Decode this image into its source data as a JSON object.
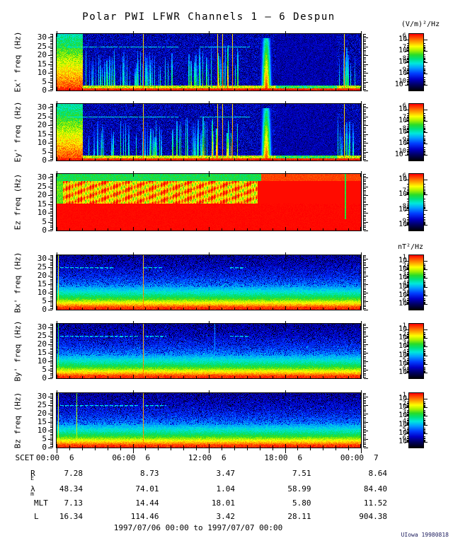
{
  "title": "Polar PWI LFWR Channels 1 — 6 Despun",
  "footer": "1997/07/06 00:00 to 1997/07/07 00:00",
  "credit": "UIowa 19980818",
  "colorbar_units": {
    "electric": "(V/m)²/Hz",
    "magnetic": "nT²/Hz"
  },
  "colors": {
    "frame": "#000000",
    "background": "#ffffff",
    "credit_text": "#202060"
  },
  "axes": {
    "time_label": "SCET",
    "time_ticks": [
      {
        "time": "00:00",
        "day": "6"
      },
      {
        "time": "06:00",
        "day": "6"
      },
      {
        "time": "12:00",
        "day": "6"
      },
      {
        "time": "18:00",
        "day": "6"
      },
      {
        "time": "00:00",
        "day": "7"
      }
    ],
    "freq_ticks": [
      "0",
      "5",
      "10",
      "15",
      "20",
      "25",
      "30"
    ]
  },
  "ephemeris": {
    "rows": [
      {
        "label": "R",
        "sub": "E",
        "values": [
          "7.28",
          "8.73",
          "3.47",
          "7.51",
          "8.64"
        ]
      },
      {
        "label": "λ",
        "sub": "m",
        "values": [
          "48.34",
          "74.01",
          "1.04",
          "58.99",
          "84.40"
        ]
      },
      {
        "label": "MLT",
        "sub": "",
        "values": [
          "7.13",
          "14.44",
          "18.01",
          "5.80",
          "11.52"
        ]
      },
      {
        "label": "L",
        "sub": "",
        "values": [
          "16.34",
          "114.46",
          "3.42",
          "28.11",
          "904.38"
        ]
      }
    ]
  },
  "chart_data": {
    "type": "heatmap",
    "subtype": "spectrogram",
    "title": "Polar PWI LFWR Channels 1 — 6 Despun",
    "x_axis": {
      "label": "SCET",
      "start": "1997/07/06 00:00",
      "end": "1997/07/07 00:00",
      "major_tick_hours": [
        0,
        6,
        12,
        18,
        24
      ],
      "minor_tick_hours": 1
    },
    "y_axis": {
      "label": "freq (Hz)",
      "range": [
        0,
        32
      ],
      "ticks": [
        0,
        5,
        10,
        15,
        20,
        25,
        30
      ]
    },
    "legend_position": "right-colorbars",
    "colormap_stops": [
      "#000008",
      "#000060",
      "#0000c8",
      "#003cff",
      "#00a0ff",
      "#00e8dc",
      "#00e178",
      "#28dc28",
      "#a0f000",
      "#ffff00",
      "#ffa000",
      "#ff5000",
      "#ff0000"
    ],
    "panels": [
      {
        "id": "ex",
        "channel": 1,
        "ylabel": "Ex' freq (Hz)",
        "unit": "(V/m)²/Hz",
        "colorbar_exponents": [
          -6,
          -7,
          -8,
          -9,
          -10
        ],
        "kind": "electric_burst",
        "seed": 101,
        "description": "Dark-blue noise background; intense broadband burst 00:00-02:00; clusters of vertical wave bursts to ~22 Hz until ~15:00; narrow red spikes at ~06:50, ~12:40-13:50, ~22:45; strong broadband blob near 16:30; quiet 17:30-22:00; cyan interference line near 25 Hz; red band below 2 Hz.",
        "features": {
          "left_burst": {
            "t0": 0.0,
            "t1": 0.085
          },
          "streak_clusters": [
            {
              "t0": 0.095,
              "t1": 0.41,
              "count": 48,
              "fmax": 0.72,
              "strength": 0.58
            },
            {
              "t0": 0.42,
              "t1": 0.5,
              "count": 16,
              "fmax": 0.78,
              "strength": 0.62
            },
            {
              "t0": 0.5,
              "t1": 0.6,
              "count": 12,
              "fmax": 0.82,
              "strength": 0.78
            },
            {
              "t0": 0.925,
              "t1": 0.985,
              "count": 10,
              "fmax": 0.78,
              "strength": 0.62
            }
          ],
          "red_lines": [
            0.284,
            0.528,
            0.545,
            0.578,
            0.947
          ],
          "blob": {
            "t": 0.688,
            "halfwidth": 0.016
          },
          "cyan_line": {
            "f": 0.78,
            "segments": [
              [
                0.035,
                0.4
              ],
              [
                0.47,
                0.635
              ]
            ]
          },
          "quiet_region": [
            0.72,
            0.92
          ]
        }
      },
      {
        "id": "ey",
        "channel": 2,
        "ylabel": "Ey' freq (Hz)",
        "unit": "(V/m)²/Hz",
        "colorbar_exponents": [
          -6,
          -7,
          -8,
          -9,
          -10
        ],
        "kind": "electric_burst",
        "seed": 202,
        "description": "Very similar to Ex': burst at start, vertical wave bursts until ~15:00, blob near 16:30, quiet evening sector, 25 Hz interference line, red band below 2 Hz.",
        "features": {
          "left_burst": {
            "t0": 0.0,
            "t1": 0.085
          },
          "streak_clusters": [
            {
              "t0": 0.095,
              "t1": 0.41,
              "count": 44,
              "fmax": 0.72,
              "strength": 0.58
            },
            {
              "t0": 0.42,
              "t1": 0.5,
              "count": 15,
              "fmax": 0.78,
              "strength": 0.62
            },
            {
              "t0": 0.5,
              "t1": 0.6,
              "count": 12,
              "fmax": 0.82,
              "strength": 0.78
            },
            {
              "t0": 0.925,
              "t1": 0.985,
              "count": 10,
              "fmax": 0.78,
              "strength": 0.62
            }
          ],
          "red_lines": [
            0.284,
            0.528,
            0.545,
            0.578,
            0.947
          ],
          "blob": {
            "t": 0.688,
            "halfwidth": 0.016
          },
          "cyan_line": {
            "f": 0.78,
            "segments": [
              [
                0.035,
                0.4
              ],
              [
                0.47,
                0.635
              ]
            ]
          },
          "quiet_region": [
            0.72,
            0.92
          ]
        }
      },
      {
        "id": "ez",
        "channel": 3,
        "ylabel": "Ez freq (Hz)",
        "unit": "(V/m)²/Hz",
        "colorbar_exponents": [
          -6,
          -7,
          -8,
          -9
        ],
        "kind": "electric_saturated",
        "seed": 303,
        "description": "Saturated channel: solid red below ~15 Hz all day; blotchy yellow/orange striped band 15-28 Hz until ~16:00 then solid red; thin green strip at top edge until ~16:00; narrow green line near 22:45.",
        "features": {
          "blotch_t1": 0.66,
          "top_green_t1": 0.67,
          "green_line_t": 0.949,
          "red_bottom_fraction": 0.48
        }
      },
      {
        "id": "bx",
        "channel": 4,
        "ylabel": "Bx' freq (Hz)",
        "unit": "nT²/Hz",
        "colorbar_exponents": [
          -1,
          -2,
          -3,
          -4,
          -5,
          -6
        ],
        "kind": "magnetic",
        "seed": 404,
        "description": "Smooth power-law spectrum: red <2 Hz grading through yellow/green/cyan to speckled dark blue above ~15 Hz; yellow calibration line at 00:00 and orange line at ~06:50; dashed cyan interference near 25 Hz.",
        "features": {
          "vertical_lines": [
            {
              "t": 0.004,
              "v": 0.82
            },
            {
              "t": 0.284,
              "v": 0.9
            }
          ],
          "cyan_dashes": {
            "f": 0.78,
            "segments": [
              [
                0.012,
                0.185
              ],
              [
                0.287,
                0.35
              ],
              [
                0.57,
                0.62
              ]
            ]
          }
        }
      },
      {
        "id": "by",
        "channel": 5,
        "ylabel": "By' freq (Hz)",
        "unit": "nT²/Hz",
        "colorbar_exponents": [
          -1,
          -2,
          -3,
          -4,
          -5,
          -6
        ],
        "kind": "magnetic",
        "seed": 505,
        "description": "Same gradient spectrum; green line at 00:00, orange line ~06:50, faint cyan line ~12:30; dashed cyan interference near 25 Hz.",
        "features": {
          "vertical_lines": [
            {
              "t": 0.004,
              "v": 0.7
            },
            {
              "t": 0.284,
              "v": 0.9
            },
            {
              "t": 0.52,
              "v": 0.45
            }
          ],
          "cyan_dashes": {
            "f": 0.78,
            "segments": [
              [
                0.012,
                0.27
              ],
              [
                0.29,
                0.36
              ],
              [
                0.57,
                0.63
              ]
            ]
          }
        }
      },
      {
        "id": "bz",
        "channel": 6,
        "ylabel": "Bz freq (Hz)",
        "unit": "nT²/Hz",
        "colorbar_exponents": [
          -1,
          -2,
          -3,
          -4,
          -5,
          -6
        ],
        "kind": "magnetic",
        "seed": 606,
        "description": "Same gradient spectrum; yellow lines at 00:00 and ~01:30, orange line ~06:50; dashed cyan interference near 25 Hz.",
        "features": {
          "vertical_lines": [
            {
              "t": 0.004,
              "v": 0.82
            },
            {
              "t": 0.065,
              "v": 0.75
            },
            {
              "t": 0.284,
              "v": 0.9
            }
          ],
          "cyan_dashes": {
            "f": 0.78,
            "segments": [
              [
                0.012,
                0.27
              ],
              [
                0.29,
                0.36
              ]
            ]
          }
        }
      }
    ]
  }
}
